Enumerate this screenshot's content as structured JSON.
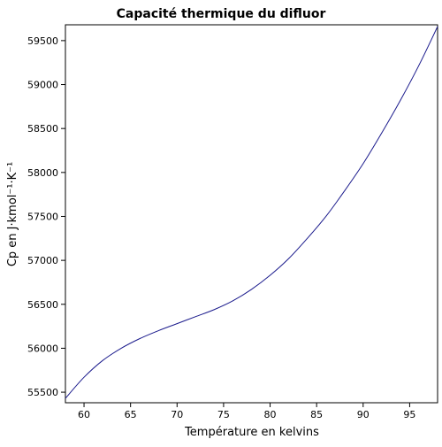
{
  "chart_data": {
    "type": "line",
    "title": "Capacité thermique du difluor",
    "xlabel": "Température en kelvins",
    "ylabel": "Cp en J·kmol⁻¹·K⁻¹",
    "xlim": [
      58,
      98
    ],
    "ylim": [
      55380,
      59680
    ],
    "x_ticks": [
      60,
      65,
      70,
      75,
      80,
      85,
      90,
      95
    ],
    "y_ticks": [
      55500,
      56000,
      56500,
      57000,
      57500,
      58000,
      58500,
      59000,
      59500
    ],
    "grid": false,
    "line_color": "#1a1a8c",
    "series": [
      {
        "x": [
          58,
          60,
          62,
          64,
          66,
          68,
          70,
          72,
          74,
          76,
          78,
          80,
          82,
          84,
          86,
          88,
          90,
          92,
          94,
          96,
          98
        ],
        "y": [
          55430,
          55670,
          55860,
          56000,
          56110,
          56200,
          56280,
          56360,
          56440,
          56540,
          56670,
          56830,
          57020,
          57250,
          57500,
          57790,
          58100,
          58450,
          58820,
          59220,
          59660
        ]
      }
    ]
  }
}
